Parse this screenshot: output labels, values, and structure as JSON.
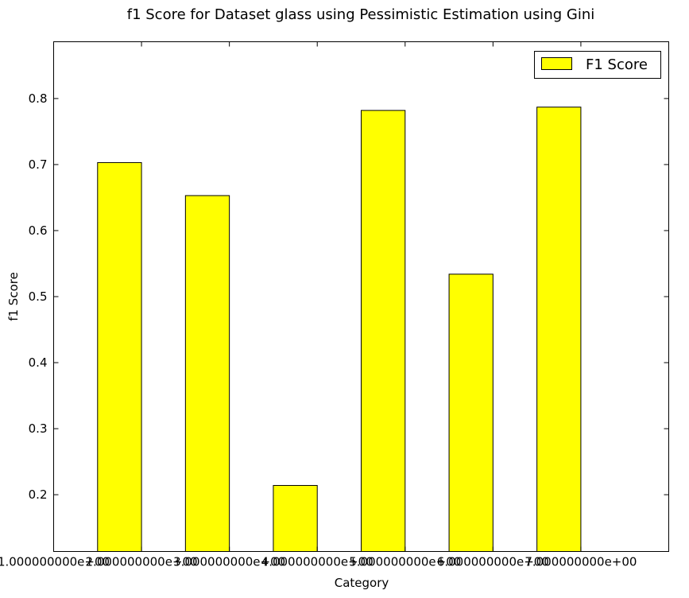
{
  "chart_data": {
    "type": "bar",
    "title": "f1 Score for Dataset glass using Pessimistic Estimation using Gini",
    "xlabel": "Category",
    "ylabel": "f1 Score",
    "categories": [
      2,
      3,
      4,
      5,
      6,
      7
    ],
    "x_tick_labels": [
      "1.000000000e+00",
      "2.000000000e+00",
      "3.000000000e+00",
      "4.000000000e+00",
      "5.000000000e+00",
      "6.000000000e+00",
      "7.000000000e+00"
    ],
    "xlim": [
      1,
      8
    ],
    "series": [
      {
        "name": "F1 Score",
        "values": [
          0.703,
          0.653,
          0.214,
          0.782,
          0.534,
          0.787
        ],
        "color": "#ffff00"
      }
    ],
    "ylim": [
      0.114,
      0.886
    ],
    "y_ticks": [
      0.2,
      0.3,
      0.4,
      0.5,
      0.6,
      0.7,
      0.8
    ],
    "y_tick_labels": [
      "0.2",
      "0.3",
      "0.4",
      "0.5",
      "0.6",
      "0.7",
      "0.8"
    ],
    "grid": false,
    "legend_position": "top-right"
  }
}
